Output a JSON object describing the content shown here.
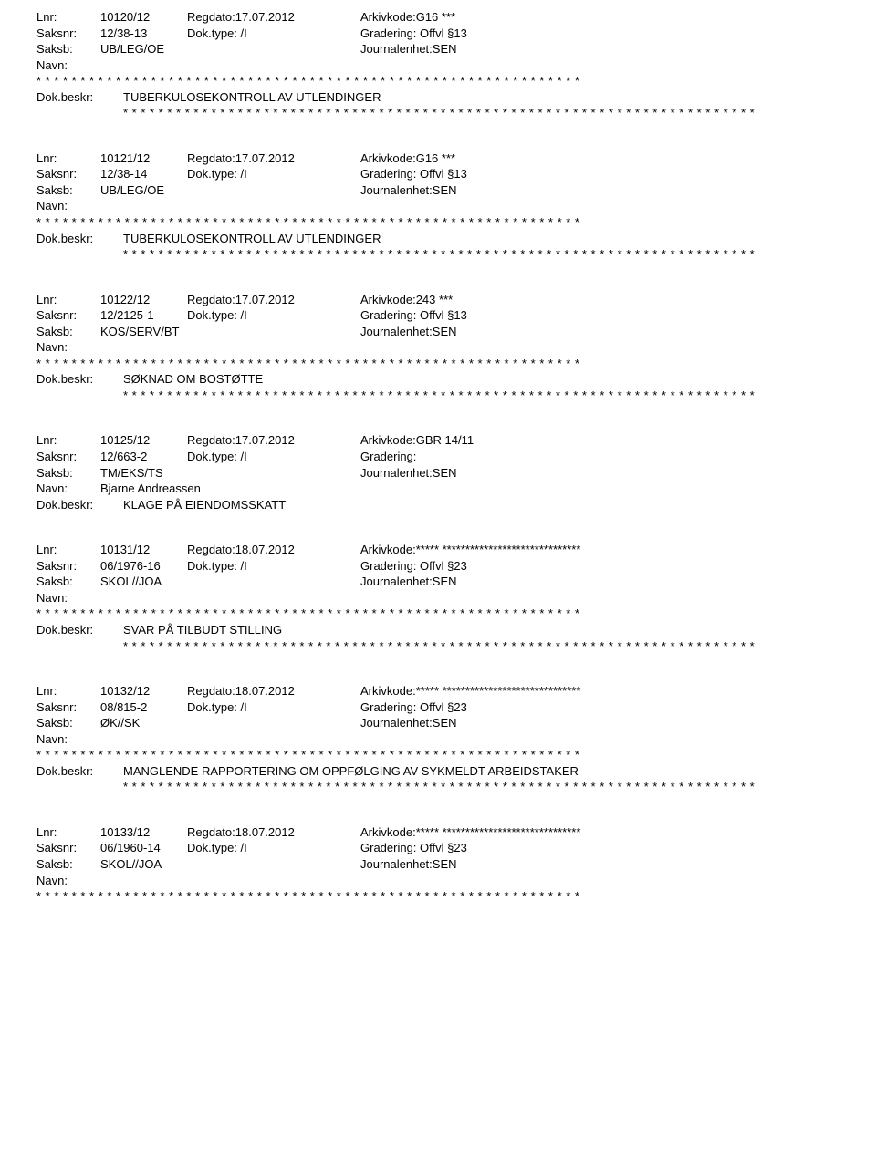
{
  "stars62": "* * * * * * * * * * * * * * * * * * * * * * * * * * * * * * * * * * * * * * * * * * * * * * * * * * * * * * * * * * * * * *",
  "stars72": "* * * * * * * * * * * * * * * * * * * * * * * * * * * * * * * * * * * * * * * * * * * * * * * * * * * * * * * * * * * * * * * * * * * * * * * *",
  "labels": {
    "lnr": "Lnr:",
    "regdato": "Regdato:",
    "arkiv": "Arkivkode:",
    "saksnr": "Saksnr:",
    "doktype": "Dok.type:",
    "gradering": "Gradering:",
    "saksb": "Saksb:",
    "journal": "Journalenhet:",
    "navn": "Navn:",
    "beskr": "Dok.beskr:"
  },
  "entries": [
    {
      "lnr": "10120/12",
      "regdato": "17.07.2012",
      "arkiv": "G16 ***",
      "saksnr": "12/38-13",
      "doktype": "/I",
      "gradering": "Offvl §13",
      "saksb": "UB/LEG/OE",
      "journal": "SEN",
      "navn": "",
      "navn_stars": true,
      "beskr": "TUBERKULOSEKONTROLL AV UTLENDINGER",
      "beskr_stars": true
    },
    {
      "lnr": "10121/12",
      "regdato": "17.07.2012",
      "arkiv": "G16 ***",
      "saksnr": "12/38-14",
      "doktype": "/I",
      "gradering": "Offvl §13",
      "saksb": "UB/LEG/OE",
      "journal": "SEN",
      "navn": "",
      "navn_stars": true,
      "beskr": "TUBERKULOSEKONTROLL AV UTLENDINGER",
      "beskr_stars": true
    },
    {
      "lnr": "10122/12",
      "regdato": "17.07.2012",
      "arkiv": "243 ***",
      "saksnr": "12/2125-1",
      "doktype": "/I",
      "gradering": "Offvl §13",
      "saksb": "KOS/SERV/BT",
      "journal": "SEN",
      "navn": "",
      "navn_stars": true,
      "beskr": "SØKNAD OM BOSTØTTE",
      "beskr_stars": true
    },
    {
      "lnr": "10125/12",
      "regdato": "17.07.2012",
      "arkiv": "GBR 14/11",
      "saksnr": "12/663-2",
      "doktype": "/I",
      "gradering": "",
      "saksb": "TM/EKS/TS",
      "journal": "SEN",
      "navn": "Bjarne Andreassen",
      "navn_stars": false,
      "beskr": "KLAGE PÅ EIENDOMSSKATT",
      "beskr_stars": false
    },
    {
      "lnr": "10131/12",
      "regdato": "18.07.2012",
      "arkiv": "***** ******************************",
      "saksnr": "06/1976-16",
      "doktype": "/I",
      "gradering": "Offvl §23",
      "saksb": "SKOL//JOA",
      "journal": "SEN",
      "navn": "",
      "navn_stars": true,
      "beskr": "SVAR PÅ TILBUDT STILLING",
      "beskr_stars": true
    },
    {
      "lnr": "10132/12",
      "regdato": "18.07.2012",
      "arkiv": "***** ******************************",
      "saksnr": "08/815-2",
      "doktype": "/I",
      "gradering": "Offvl §23",
      "saksb": "ØK//SK",
      "journal": "SEN",
      "navn": "",
      "navn_stars": true,
      "beskr": "MANGLENDE RAPPORTERING OM OPPFØLGING AV SYKMELDT ARBEIDSTAKER",
      "beskr_stars": true
    },
    {
      "lnr": "10133/12",
      "regdato": "18.07.2012",
      "arkiv": "***** ******************************",
      "saksnr": "06/1960-14",
      "doktype": "/I",
      "gradering": "Offvl §23",
      "saksb": "SKOL//JOA",
      "journal": "SEN",
      "navn": "",
      "navn_stars": true,
      "beskr": null,
      "beskr_stars": false
    }
  ]
}
